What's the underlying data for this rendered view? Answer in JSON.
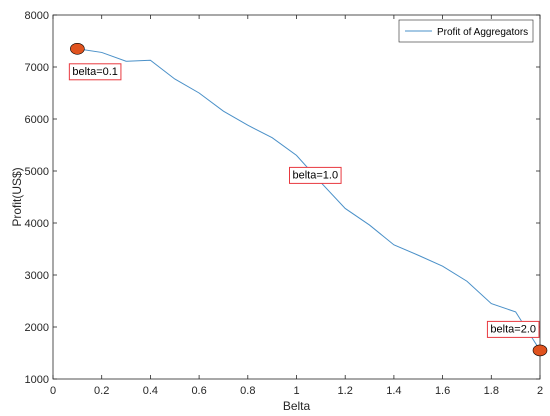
{
  "chart_data": {
    "type": "line",
    "xlabel": "Belta",
    "ylabel": "Profit(US$)",
    "xlim": [
      0,
      2
    ],
    "ylim": [
      1000,
      8000
    ],
    "xticks": [
      0,
      0.2,
      0.4,
      0.6,
      0.8,
      1,
      1.2,
      1.4,
      1.6,
      1.8,
      2
    ],
    "xtick_labels": [
      "0",
      "0.2",
      "0.4",
      "0.6",
      "0.8",
      "1",
      "1.2",
      "1.4",
      "1.6",
      "1.8",
      "2"
    ],
    "yticks": [
      1000,
      2000,
      3000,
      4000,
      5000,
      6000,
      7000,
      8000
    ],
    "ytick_labels": [
      "1000",
      "2000",
      "3000",
      "4000",
      "5000",
      "6000",
      "7000",
      "8000"
    ],
    "grid": false,
    "legend_position": "top-right",
    "series": [
      {
        "name": "Profit of Aggregators",
        "color": "#4a90c8",
        "x": [
          0.1,
          0.2,
          0.3,
          0.4,
          0.5,
          0.6,
          0.7,
          0.8,
          0.9,
          1.0,
          1.1,
          1.2,
          1.3,
          1.4,
          1.5,
          1.6,
          1.7,
          1.8,
          1.9,
          2.0
        ],
        "y": [
          7350,
          7280,
          7110,
          7130,
          6770,
          6500,
          6150,
          5880,
          5640,
          5300,
          4780,
          4280,
          3960,
          3580,
          3380,
          3170,
          2880,
          2450,
          2290,
          1550
        ]
      }
    ],
    "markers": [
      {
        "x": 0.1,
        "y": 7350,
        "color": "#e0531f"
      },
      {
        "x": 2.0,
        "y": 1550,
        "color": "#e0531f"
      }
    ],
    "annotations": [
      {
        "text": "belta=0.1",
        "x": 0.1,
        "y": 7350
      },
      {
        "text": "belta=1.0",
        "x": 1.0,
        "y": 5300
      },
      {
        "text": "belta=2.0",
        "x": 2.0,
        "y": 1550
      }
    ],
    "annotation_border_color": "#e8393f"
  }
}
